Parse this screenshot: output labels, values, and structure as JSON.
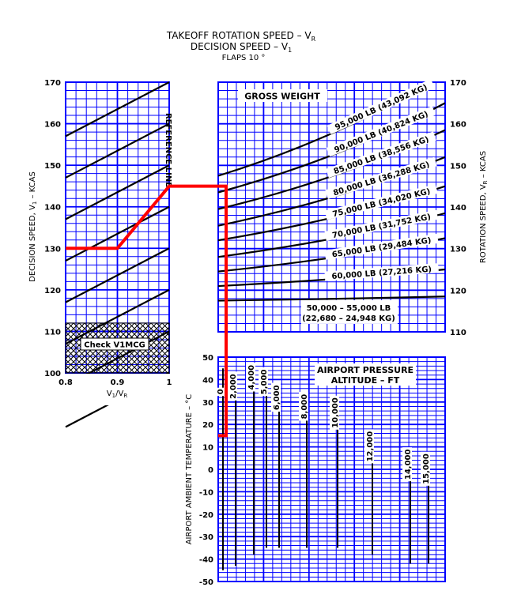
{
  "title": {
    "line1": "TAKEOFF ROTATION SPEED – V",
    "line1_sub": "R",
    "line2": "DECISION SPEED – V",
    "line2_sub": "1",
    "line3": "FLAPS 10 °"
  },
  "colors": {
    "grid": "#0000ff",
    "curves": "#000000",
    "example_path": "#ff0000",
    "background": "#ffffff"
  },
  "chart_data": [
    {
      "panel": "ratio",
      "type": "line",
      "xlabel_main": "V",
      "xlabel_sub1": "1",
      "xlabel_mid": "/V",
      "xlabel_sub2": "R",
      "ylabel": "DECISION SPEED, V",
      "ylabel_sub": "1",
      "ylabel_tail": " – KCAS",
      "xlim": [
        0.8,
        1.0
      ],
      "ylim": [
        100,
        170
      ],
      "x_ticks": [
        "0.8",
        "0.9",
        "1"
      ],
      "y_ticks": [
        "100",
        "110",
        "120",
        "130",
        "140",
        "150",
        "160",
        "170"
      ],
      "reference_line_label": "REFERENCE LINE",
      "hatch_label": "Check V1MCG",
      "hatch_range": [
        100,
        112
      ],
      "guide_lines_at_vr": [
        170,
        160,
        150,
        140,
        130,
        120,
        110,
        100
      ],
      "guide_line_fan_ratio": 0.65
    },
    {
      "panel": "gross-weight",
      "type": "line",
      "title": "GROSS WEIGHT",
      "ylabel": "ROTATION SPEED, V",
      "ylabel_sub": "R",
      "ylabel_tail": " – KCAS",
      "ylim": [
        110,
        170
      ],
      "y_ticks": [
        "110",
        "120",
        "130",
        "140",
        "150",
        "160",
        "170"
      ],
      "series": [
        {
          "name": "95,000 LB (43,092 KG)",
          "vr_left": 147.5,
          "vr_right": 172.0
        },
        {
          "name": "90,000 LB (40,824 KG)",
          "vr_left": 143.5,
          "vr_right": 165.0
        },
        {
          "name": "85,000 LB (38,556 KG)",
          "vr_left": 139.5,
          "vr_right": 158.5
        },
        {
          "name": "80,000 LB (36,288 KG)",
          "vr_left": 135.5,
          "vr_right": 152.0
        },
        {
          "name": "75,000 LB (34,020 KG)",
          "vr_left": 132.0,
          "vr_right": 145.0
        },
        {
          "name": "70,000 LB (31,752 KG)",
          "vr_left": 128.0,
          "vr_right": 138.5
        },
        {
          "name": "65,000 LB (29,484 KG)",
          "vr_left": 124.5,
          "vr_right": 132.5
        },
        {
          "name": "60,000 LB (27,216 KG)",
          "vr_left": 121.0,
          "vr_right": 125.0
        },
        {
          "name": "50,000 – 55,000 LB",
          "name2": "(22,680 – 24,948 KG)",
          "vr_left": 117.5,
          "vr_right": 118.5
        }
      ]
    },
    {
      "panel": "altitude",
      "type": "line",
      "title_line1": "AIRPORT PRESSURE",
      "title_line2": "ALTITUDE – FT",
      "ylabel": "AIRPORT AMBIENT TEMPERATURE – °C",
      "ylim": [
        -50,
        50
      ],
      "y_ticks": [
        "50",
        "40",
        "30",
        "20",
        "10",
        "0",
        "-10",
        "-20",
        "-30",
        "-40",
        "-50"
      ],
      "series": [
        {
          "name": "0",
          "t_top": 45,
          "t_bottom": -45
        },
        {
          "name": "2,000",
          "t_top": 43,
          "t_bottom": -43
        },
        {
          "name": "4,000",
          "t_top": 47,
          "t_bottom": -38
        },
        {
          "name": "5,000",
          "t_top": 45,
          "t_bottom": -35
        },
        {
          "name": "6,000",
          "t_top": 38,
          "t_bottom": -35
        },
        {
          "name": "8,000",
          "t_top": 34,
          "t_bottom": -35
        },
        {
          "name": "10,000",
          "t_top": 30,
          "t_bottom": -35
        },
        {
          "name": "12,000",
          "t_top": 15,
          "t_bottom": -38
        },
        {
          "name": "14,000",
          "t_top": 7,
          "t_bottom": -42
        },
        {
          "name": "15,000",
          "t_top": 5,
          "t_bottom": -42
        }
      ]
    }
  ],
  "example": {
    "temperature": 15,
    "altitude": "0",
    "vr": 145,
    "v1": 130,
    "v1_vr_ratio": 0.9
  }
}
